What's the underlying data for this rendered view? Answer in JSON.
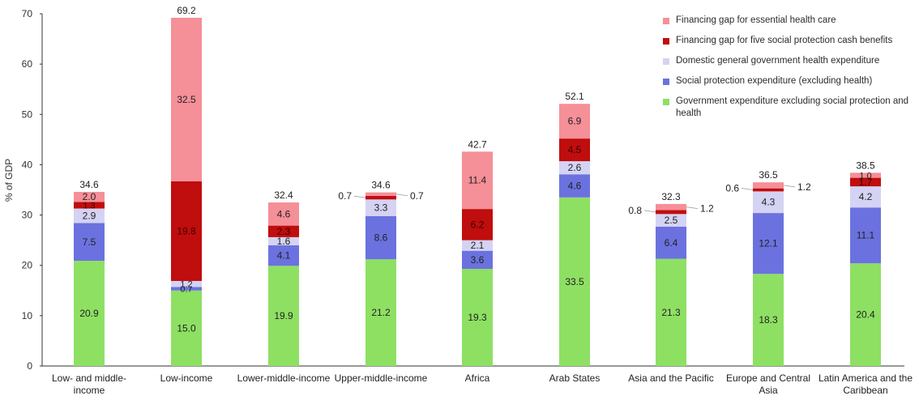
{
  "chart_data": {
    "type": "bar",
    "stacked": true,
    "ylabel": "% of GDP",
    "ylim": [
      0,
      70
    ],
    "yticks": [
      0,
      10,
      20,
      30,
      40,
      50,
      60,
      70
    ],
    "grid": false,
    "legend_position": "top-right",
    "categories": [
      "Low- and middle-income",
      "Low-income",
      "Lower-middle-income",
      "Upper-middle-income",
      "Africa",
      "Arab States",
      "Asia  and the Pacific",
      "Europe  and Central Asia",
      "Latin America and the Caribbean"
    ],
    "category_lines": [
      [
        "Low- and middle-",
        "income"
      ],
      [
        "Low-income"
      ],
      [
        "Lower-middle-income"
      ],
      [
        "Upper-middle-income"
      ],
      [
        "Africa"
      ],
      [
        "Arab States"
      ],
      [
        "Asia  and the Pacific"
      ],
      [
        "Europe  and Central",
        "Asia"
      ],
      [
        "Latin America and the",
        "Caribbean"
      ]
    ],
    "series": [
      {
        "name": "Government expenditure excluding social protection and health",
        "color": "#8ee063",
        "values": [
          20.9,
          15.0,
          19.9,
          21.2,
          19.3,
          33.5,
          21.3,
          18.3,
          20.4
        ]
      },
      {
        "name": "Social protection expenditure (excluding health)",
        "color": "#6b72df",
        "values": [
          7.5,
          0.7,
          4.1,
          8.6,
          3.6,
          4.6,
          6.4,
          12.1,
          11.1
        ]
      },
      {
        "name": "Domestic general government health expenditure",
        "color": "#d4d3f3",
        "values": [
          2.9,
          1.2,
          1.6,
          3.3,
          2.1,
          2.6,
          2.5,
          4.3,
          4.2
        ]
      },
      {
        "name": "Financing gap for five social protection cash benefits",
        "color": "#c00d0d",
        "values": [
          1.3,
          19.8,
          2.3,
          0.7,
          6.2,
          4.5,
          0.8,
          0.6,
          1.7
        ]
      },
      {
        "name": "Financing gap for essential health care",
        "color": "#f58f98",
        "values": [
          2.0,
          32.5,
          4.6,
          0.7,
          11.4,
          6.9,
          1.2,
          1.2,
          1.0
        ]
      }
    ],
    "totals": [
      "34.6",
      "69.2",
      "32.4",
      "34.6",
      "42.7",
      "52.1",
      "32.3",
      "36.5",
      "38.5"
    ],
    "value_labels": [
      [
        "20.9",
        "7.5",
        "2.9",
        "1.3",
        "2.0"
      ],
      [
        "15.0",
        "0.7",
        "1.2",
        "19.8",
        "32.5"
      ],
      [
        "19.9",
        "4.1",
        "1.6",
        "2.3",
        "4.6"
      ],
      [
        "21.2",
        "8.6",
        "3.3",
        "0.7",
        "0.7"
      ],
      [
        "19.3",
        "3.6",
        "2.1",
        "6.2",
        "11.4"
      ],
      [
        "33.5",
        "4.6",
        "2.6",
        "4.5",
        "6.9"
      ],
      [
        "21.3",
        "6.4",
        "2.5",
        "0.8",
        "1.2"
      ],
      [
        "18.3",
        "12.1",
        "4.3",
        "0.6",
        "1.2"
      ],
      [
        "20.4",
        "11.1",
        "4.2",
        "1.7",
        "1.0"
      ]
    ],
    "legend_order": [
      4,
      3,
      2,
      1,
      0
    ]
  }
}
